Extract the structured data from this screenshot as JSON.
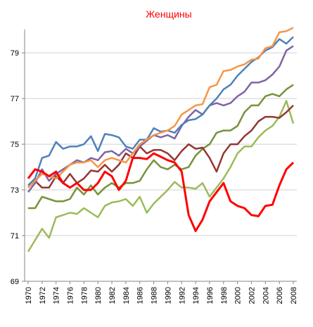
{
  "chart_data": {
    "type": "line",
    "title": "Женщины",
    "title_color": "#ff0000",
    "x": [
      1970,
      1971,
      1972,
      1973,
      1974,
      1975,
      1976,
      1977,
      1978,
      1979,
      1980,
      1981,
      1982,
      1983,
      1984,
      1985,
      1986,
      1987,
      1988,
      1989,
      1990,
      1991,
      1992,
      1993,
      1994,
      1995,
      1996,
      1997,
      1998,
      1999,
      2000,
      2001,
      2002,
      2003,
      2004,
      2005,
      2006,
      2007,
      2008
    ],
    "xlim": [
      1969.5,
      2008.5
    ],
    "xticks": [
      1970,
      1972,
      1974,
      1976,
      1978,
      1980,
      1982,
      1984,
      1986,
      1988,
      1990,
      1992,
      1994,
      1996,
      1998,
      2000,
      2002,
      2004,
      2006,
      2008
    ],
    "ylim": [
      69,
      80.02
    ],
    "yticks": [
      69,
      71,
      73,
      75,
      77,
      79
    ],
    "grid": true,
    "series": [
      {
        "color": "#9bbb59",
        "values": [
          70.3,
          70.8,
          71.3,
          70.9,
          71.8,
          71.9,
          72.0,
          71.95,
          72.2,
          72.0,
          71.8,
          72.3,
          72.45,
          72.5,
          72.6,
          72.3,
          72.7,
          72.0,
          72.4,
          72.7,
          73.0,
          73.35,
          73.1,
          73.1,
          73.05,
          73.3,
          72.7,
          73.1,
          73.5,
          74.0,
          74.6,
          74.9,
          74.9,
          75.3,
          75.6,
          75.8,
          76.2,
          76.9,
          75.9
        ]
      },
      {
        "color": "#77933c",
        "values": [
          72.2,
          72.2,
          72.7,
          72.6,
          72.5,
          72.5,
          72.6,
          73.1,
          72.8,
          73.2,
          72.8,
          73.1,
          73.3,
          73.1,
          73.3,
          73.3,
          73.4,
          73.9,
          74.3,
          74.0,
          73.9,
          74.1,
          73.9,
          74.0,
          74.5,
          74.8,
          75.0,
          75.5,
          75.6,
          75.6,
          75.8,
          76.4,
          76.7,
          76.7,
          77.1,
          77.2,
          77.1,
          77.4,
          77.6
        ]
      },
      {
        "color": "#943634",
        "values": [
          73.1,
          73.4,
          73.1,
          73.1,
          73.6,
          73.3,
          73.7,
          73.3,
          73.5,
          73.85,
          73.8,
          74.1,
          73.8,
          74.1,
          74.6,
          74.4,
          74.9,
          74.6,
          74.75,
          74.75,
          74.6,
          74.3,
          74.7,
          75.0,
          74.8,
          74.85,
          74.4,
          73.8,
          74.6,
          75.0,
          75.0,
          75.35,
          75.6,
          76.0,
          76.2,
          76.2,
          76.15,
          76.4,
          76.7
        ]
      },
      {
        "color": "#8064a2",
        "values": [
          72.9,
          73.3,
          73.9,
          73.4,
          73.7,
          73.9,
          74.1,
          74.3,
          74.2,
          74.4,
          74.3,
          74.65,
          74.7,
          74.5,
          74.8,
          74.6,
          74.9,
          75.15,
          75.4,
          75.3,
          75.4,
          75.25,
          75.8,
          76.2,
          76.5,
          76.3,
          76.7,
          76.8,
          76.7,
          76.8,
          77.1,
          77.3,
          77.7,
          77.7,
          77.8,
          78.05,
          78.4,
          79.1,
          79.3
        ]
      },
      {
        "color": "#4f81bd",
        "values": [
          73.2,
          73.5,
          74.4,
          74.5,
          75.1,
          74.8,
          74.9,
          74.9,
          75.0,
          75.35,
          74.7,
          75.45,
          75.4,
          75.3,
          74.9,
          74.8,
          75.2,
          75.2,
          75.7,
          75.55,
          75.6,
          75.5,
          75.85,
          76.05,
          76.1,
          76.3,
          76.7,
          77.0,
          77.4,
          77.6,
          78.0,
          78.3,
          78.6,
          78.8,
          79.1,
          79.25,
          79.6,
          79.4,
          79.7
        ]
      },
      {
        "color": "#f79646",
        "values": [
          73.1,
          73.4,
          73.7,
          73.6,
          73.5,
          73.8,
          74.1,
          74.2,
          74.2,
          74.3,
          74.0,
          74.3,
          74.4,
          74.3,
          74.2,
          74.6,
          75.0,
          75.2,
          75.4,
          75.5,
          75.6,
          75.8,
          76.3,
          76.5,
          76.7,
          76.75,
          77.5,
          77.6,
          78.2,
          78.25,
          78.4,
          78.5,
          78.7,
          78.75,
          79.2,
          79.3,
          79.9,
          79.95,
          80.1
        ]
      },
      {
        "color": "#ff0000",
        "values": [
          73.5,
          73.9,
          73.8,
          73.6,
          73.8,
          73.3,
          73.1,
          73.3,
          73.0,
          73.0,
          73.3,
          73.8,
          73.6,
          73.0,
          73.4,
          74.4,
          74.4,
          74.35,
          74.6,
          74.45,
          74.3,
          74.2,
          73.8,
          71.9,
          71.2,
          71.7,
          72.5,
          72.9,
          73.3,
          72.5,
          72.3,
          72.2,
          71.9,
          71.85,
          72.3,
          72.35,
          73.2,
          73.9,
          74.2
        ]
      }
    ]
  }
}
